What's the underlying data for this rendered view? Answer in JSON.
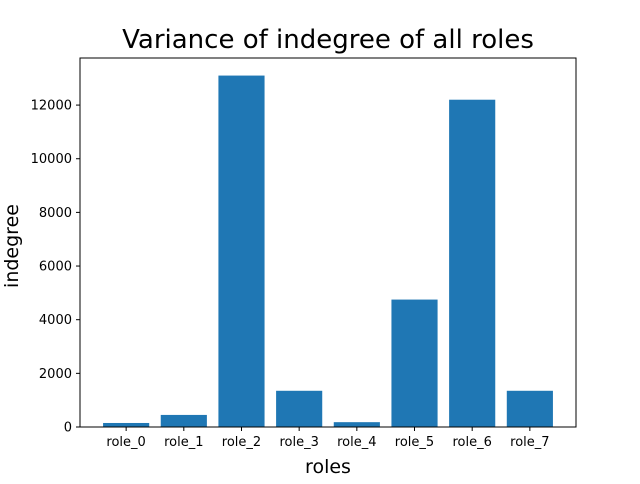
{
  "chart_data": {
    "type": "bar",
    "title": "Variance of indegree of all roles",
    "xlabel": "roles",
    "ylabel": "indegree",
    "categories": [
      "role_0",
      "role_1",
      "role_2",
      "role_3",
      "role_4",
      "role_5",
      "role_6",
      "role_7"
    ],
    "values": [
      150,
      450,
      13100,
      1350,
      180,
      4750,
      12200,
      1350
    ],
    "ylim": [
      0,
      13755
    ],
    "yticks": [
      0,
      2000,
      4000,
      6000,
      8000,
      10000,
      12000
    ],
    "grid": false,
    "legend": "none",
    "colors": {
      "bar": "#1f77b4"
    }
  }
}
